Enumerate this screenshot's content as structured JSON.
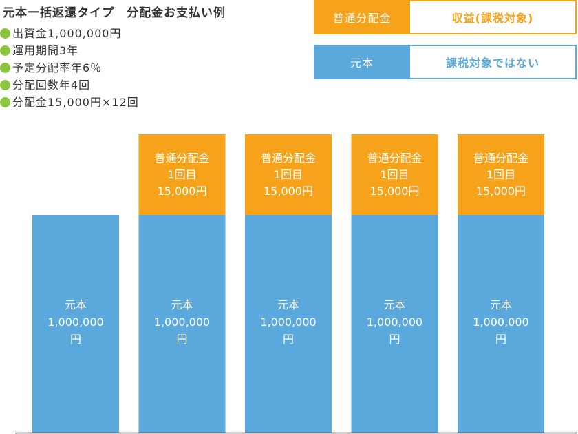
{
  "title": "元本一括返還タイプ　分配金お支払い例",
  "conditions": [
    "出資金1,000,000円",
    "運用期間3年",
    "予定分配率年6％",
    "分配回数年4回",
    "分配金15,000円×12回"
  ],
  "legend": [
    {
      "key": "普通分配金",
      "desc": "収益(課税対象)",
      "color": "#f7a21b"
    },
    {
      "key": "元本",
      "desc": "課税対象ではない",
      "color": "#5aa8dc"
    }
  ],
  "chart_data": {
    "type": "bar",
    "stacked": true,
    "categories": [
      "",
      "",
      "",
      "",
      ""
    ],
    "series": [
      {
        "name": "元本",
        "color": "#5aa8dc",
        "values": [
          1000000,
          1000000,
          1000000,
          1000000,
          1000000
        ],
        "labels": [
          [
            "元本",
            "1,000,000",
            "円"
          ],
          [
            "元本",
            "1,000,000",
            "円"
          ],
          [
            "元本",
            "1,000,000",
            "円"
          ],
          [
            "元本",
            "1,000,000",
            "円"
          ],
          [
            "元本",
            "1,000,000",
            "円"
          ]
        ]
      },
      {
        "name": "普通分配金",
        "color": "#f7a21b",
        "values": [
          0,
          15000,
          15000,
          15000,
          15000
        ],
        "labels": [
          null,
          [
            "普通分配金",
            "1回目",
            "15,000円"
          ],
          [
            "普通分配金",
            "1回目",
            "15,000円"
          ],
          [
            "普通分配金",
            "1回目",
            "15,000円"
          ],
          [
            "普通分配金",
            "1回目",
            "15,000円"
          ]
        ]
      }
    ],
    "grid": false
  }
}
